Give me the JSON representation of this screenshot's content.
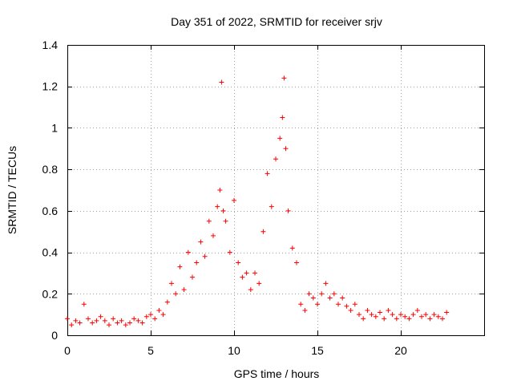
{
  "chart_data": {
    "type": "scatter",
    "title": "Day 351 of 2022, SRMTID for receiver srjv",
    "xlabel": "GPS time / hours",
    "ylabel": "SRMTID / TECUs",
    "xlim": [
      0,
      25
    ],
    "ylim": [
      0,
      1.4
    ],
    "xticks": [
      0,
      5,
      10,
      15,
      20
    ],
    "xtick_labels": [
      "0",
      "5",
      "10",
      "15",
      "20"
    ],
    "yticks": [
      0,
      0.2,
      0.4,
      0.6,
      0.8,
      1,
      1.2,
      1.4
    ],
    "ytick_labels": [
      "0",
      "0.2",
      "0.4",
      "0.6",
      "0.8",
      "1",
      "1.2",
      "1.4"
    ],
    "grid": true,
    "marker": "+",
    "point_color": "#ff0000",
    "series": [
      {
        "name": "srjv",
        "x": [
          0.0,
          0.25,
          0.5,
          0.75,
          1.0,
          1.25,
          1.5,
          1.75,
          2.0,
          2.25,
          2.5,
          2.75,
          3.0,
          3.25,
          3.5,
          3.75,
          4.0,
          4.25,
          4.5,
          4.75,
          5.0,
          5.25,
          5.5,
          5.75,
          6.0,
          6.25,
          6.5,
          6.75,
          7.0,
          7.25,
          7.5,
          7.75,
          8.0,
          8.25,
          8.5,
          8.75,
          9.0,
          9.15,
          9.25,
          9.35,
          9.5,
          9.75,
          10.0,
          10.25,
          10.5,
          10.75,
          11.0,
          11.25,
          11.5,
          11.75,
          12.0,
          12.25,
          12.5,
          12.75,
          12.9,
          13.0,
          13.1,
          13.25,
          13.5,
          13.75,
          14.0,
          14.25,
          14.5,
          14.75,
          15.0,
          15.25,
          15.5,
          15.75,
          16.0,
          16.25,
          16.5,
          16.75,
          17.0,
          17.25,
          17.5,
          17.75,
          18.0,
          18.25,
          18.5,
          18.75,
          19.0,
          19.25,
          19.5,
          19.75,
          20.0,
          20.25,
          20.5,
          20.75,
          21.0,
          21.25,
          21.5,
          21.75,
          22.0,
          22.25,
          22.5,
          22.75
        ],
        "y": [
          0.08,
          0.05,
          0.07,
          0.06,
          0.15,
          0.08,
          0.06,
          0.07,
          0.09,
          0.07,
          0.05,
          0.08,
          0.06,
          0.07,
          0.05,
          0.06,
          0.08,
          0.07,
          0.06,
          0.09,
          0.1,
          0.08,
          0.12,
          0.1,
          0.16,
          0.25,
          0.2,
          0.33,
          0.22,
          0.4,
          0.28,
          0.35,
          0.45,
          0.38,
          0.55,
          0.48,
          0.62,
          0.7,
          1.22,
          0.6,
          0.55,
          0.4,
          0.65,
          0.35,
          0.28,
          0.3,
          0.22,
          0.3,
          0.25,
          0.5,
          0.78,
          0.62,
          0.85,
          0.95,
          1.05,
          1.24,
          0.9,
          0.6,
          0.42,
          0.35,
          0.15,
          0.12,
          0.2,
          0.18,
          0.15,
          0.2,
          0.25,
          0.18,
          0.2,
          0.15,
          0.18,
          0.14,
          0.12,
          0.15,
          0.1,
          0.08,
          0.12,
          0.1,
          0.09,
          0.11,
          0.08,
          0.12,
          0.1,
          0.08,
          0.1,
          0.09,
          0.08,
          0.1,
          0.12,
          0.09,
          0.1,
          0.08,
          0.1,
          0.09,
          0.08,
          0.11
        ]
      }
    ]
  }
}
